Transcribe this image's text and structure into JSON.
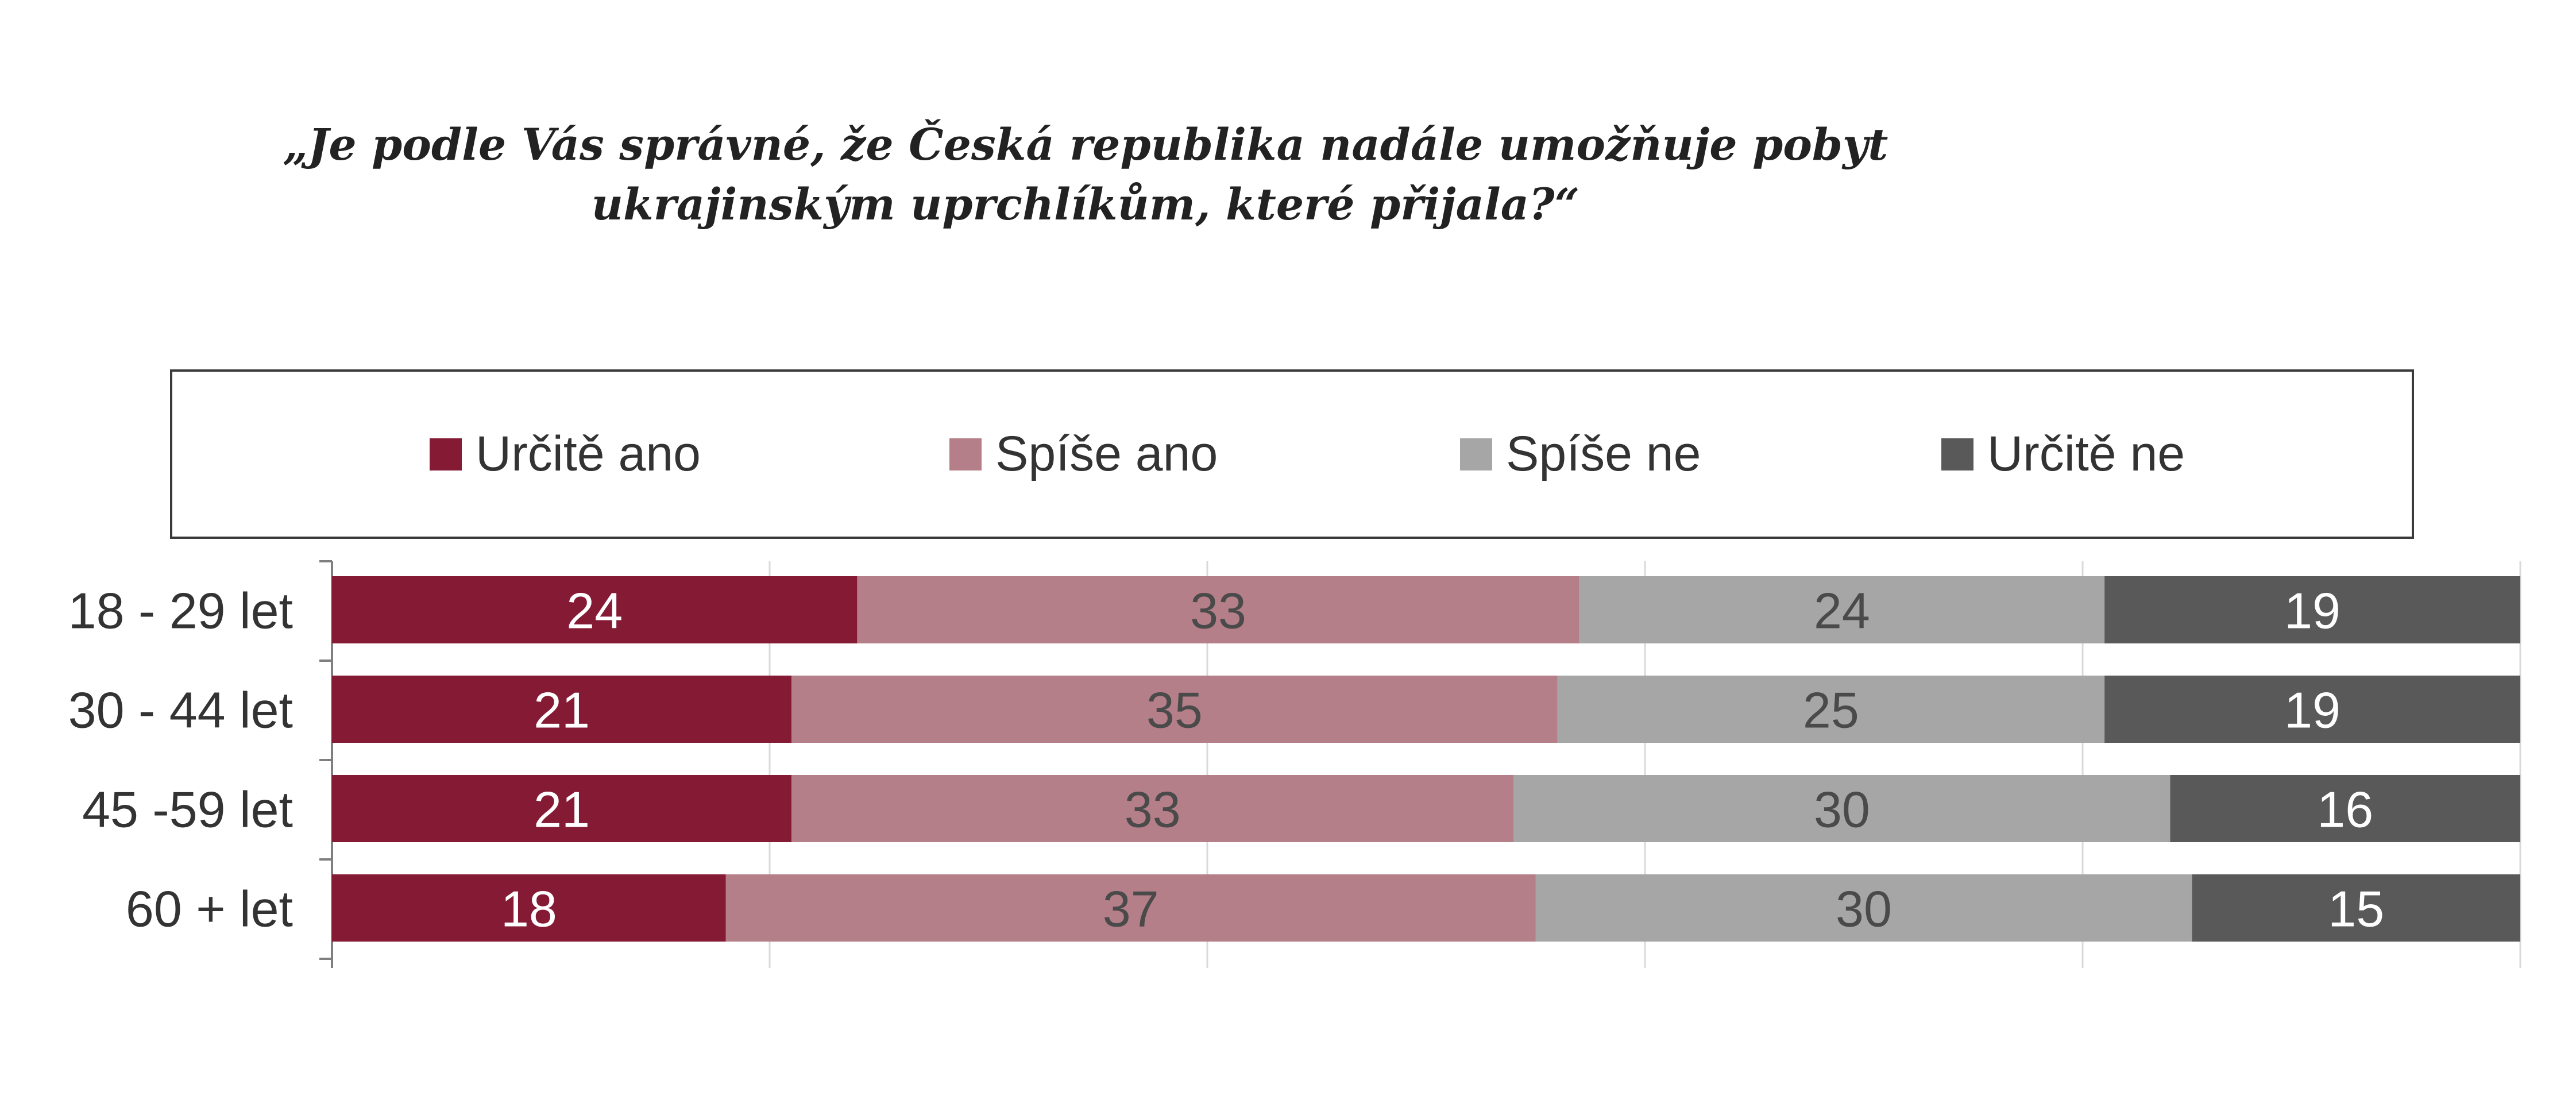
{
  "chart_data": {
    "type": "bar",
    "orientation": "horizontal",
    "stacked": true,
    "title_lines": [
      "„Je podle Vás správné, že Česká republika nadále umožňuje pobyt",
      "ukrajinským uprchlíkům, které přijala?“"
    ],
    "categories": [
      "18 - 29 let",
      "30 - 44 let",
      "45 -59 let",
      "60 + let"
    ],
    "series": [
      {
        "name": "Určitě ano",
        "color": "#841a33",
        "label_color": "#ffffff",
        "values": [
          24,
          21,
          21,
          18
        ]
      },
      {
        "name": "Spíše ano",
        "color": "#b47f89",
        "label_color": "#4a4a4a",
        "values": [
          33,
          35,
          33,
          37
        ]
      },
      {
        "name": "Spíše ne",
        "color": "#a6a6a6",
        "label_color": "#4a4a4a",
        "values": [
          24,
          25,
          30,
          30
        ]
      },
      {
        "name": "Určitě ne",
        "color": "#595959",
        "label_color": "#ffffff",
        "values": [
          19,
          19,
          16,
          15
        ]
      }
    ],
    "xlim": [
      0,
      100
    ],
    "grid": true,
    "legend_position": "top"
  }
}
